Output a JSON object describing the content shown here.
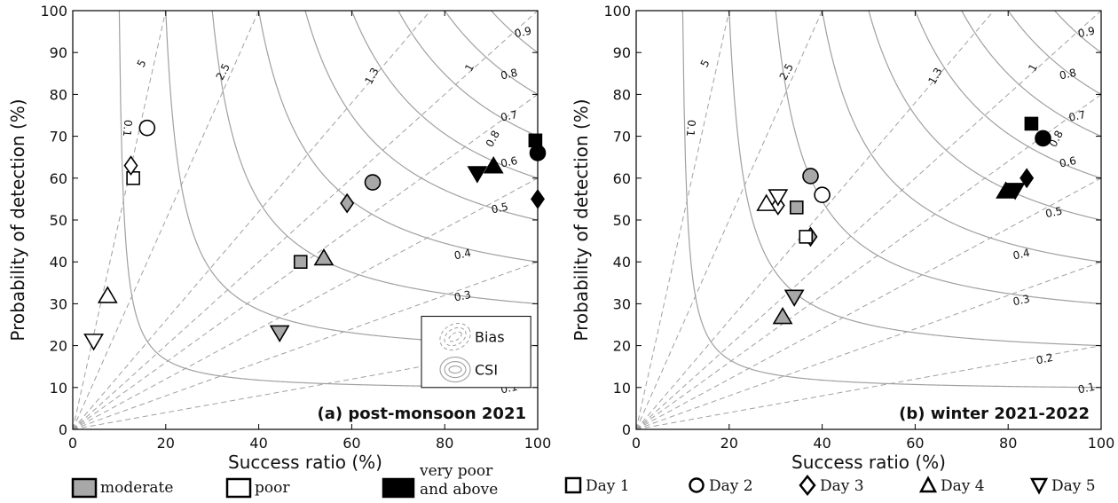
{
  "chart_data": [
    {
      "type": "scatter",
      "panel_label": "(a)  post-monsoon 2021",
      "xlabel": "Success ratio (%)",
      "ylabel": "Probability of detection (%)",
      "xlim": [
        0,
        100
      ],
      "ylim": [
        0,
        100
      ],
      "xticks": [
        "0",
        "20",
        "40",
        "60",
        "80",
        "100"
      ],
      "yticks": [
        "0",
        "10",
        "20",
        "30",
        "40",
        "50",
        "60",
        "70",
        "80",
        "90",
        "100"
      ],
      "bias_labels": [
        "5",
        "2.5",
        "1.3",
        "1",
        "0.8"
      ],
      "csi_labels": [
        "0.1",
        "0.3",
        "0.4",
        "0.5",
        "0.6",
        "0.7",
        "0.8",
        "0.9"
      ],
      "inset_legend": [
        "Bias",
        "CSI"
      ],
      "points": [
        {
          "category": "moderate",
          "day": "Day 1",
          "x": 49,
          "y": 40
        },
        {
          "category": "moderate",
          "day": "Day 2",
          "x": 64.5,
          "y": 59
        },
        {
          "category": "moderate",
          "day": "Day 3",
          "x": 59,
          "y": 54
        },
        {
          "category": "moderate",
          "day": "Day 4",
          "x": 54,
          "y": 41
        },
        {
          "category": "moderate",
          "day": "Day 5",
          "x": 44.5,
          "y": 23
        },
        {
          "category": "poor",
          "day": "Day 1",
          "x": 13,
          "y": 60
        },
        {
          "category": "poor",
          "day": "Day 2",
          "x": 16,
          "y": 72
        },
        {
          "category": "poor",
          "day": "Day 3",
          "x": 12.5,
          "y": 63
        },
        {
          "category": "poor",
          "day": "Day 4",
          "x": 7.5,
          "y": 32
        },
        {
          "category": "poor",
          "day": "Day 5",
          "x": 4.5,
          "y": 21
        },
        {
          "category": "very poor and above",
          "day": "Day 1",
          "x": 99.5,
          "y": 69
        },
        {
          "category": "very poor and above",
          "day": "Day 2",
          "x": 100,
          "y": 66
        },
        {
          "category": "very poor and above",
          "day": "Day 3",
          "x": 100,
          "y": 55
        },
        {
          "category": "very poor and above",
          "day": "Day 4",
          "x": 90.5,
          "y": 63
        },
        {
          "category": "very poor and above",
          "day": "Day 5",
          "x": 87,
          "y": 61
        }
      ]
    },
    {
      "type": "scatter",
      "panel_label": "(b)  winter 2021-2022",
      "xlabel": "Success ratio (%)",
      "ylabel": "Probability of detection (%)",
      "xlim": [
        0,
        100
      ],
      "ylim": [
        0,
        100
      ],
      "xticks": [
        "0",
        "20",
        "40",
        "60",
        "80",
        "100"
      ],
      "yticks": [
        "0",
        "10",
        "20",
        "30",
        "40",
        "50",
        "60",
        "70",
        "80",
        "90",
        "100"
      ],
      "bias_labels": [
        "5",
        "2.5",
        "1.3",
        "1",
        "0.8"
      ],
      "csi_labels": [
        "0.1",
        "0.2",
        "0.3",
        "0.4",
        "0.5",
        "0.6",
        "0.7",
        "0.8",
        "0.9"
      ],
      "points": [
        {
          "category": "moderate",
          "day": "Day 1",
          "x": 34.5,
          "y": 53
        },
        {
          "category": "moderate",
          "day": "Day 2",
          "x": 37.5,
          "y": 60.5
        },
        {
          "category": "moderate",
          "day": "Day 3",
          "x": 37.5,
          "y": 46
        },
        {
          "category": "moderate",
          "day": "Day 4",
          "x": 31.5,
          "y": 27
        },
        {
          "category": "moderate",
          "day": "Day 5",
          "x": 34,
          "y": 31.5
        },
        {
          "category": "poor",
          "day": "Day 1",
          "x": 36.5,
          "y": 46
        },
        {
          "category": "poor",
          "day": "Day 2",
          "x": 40,
          "y": 56
        },
        {
          "category": "poor",
          "day": "Day 3",
          "x": 30.5,
          "y": 53.5
        },
        {
          "category": "poor",
          "day": "Day 4",
          "x": 28,
          "y": 54
        },
        {
          "category": "poor",
          "day": "Day 5",
          "x": 30.5,
          "y": 55.5
        },
        {
          "category": "very poor and above",
          "day": "Day 1",
          "x": 85,
          "y": 73
        },
        {
          "category": "very poor and above",
          "day": "Day 2",
          "x": 87.5,
          "y": 69.5
        },
        {
          "category": "very poor and above",
          "day": "Day 3",
          "x": 84,
          "y": 60
        },
        {
          "category": "very poor and above",
          "day": "Day 4",
          "x": 79.5,
          "y": 57
        },
        {
          "category": "very poor and above",
          "day": "Day 5",
          "x": 81.5,
          "y": 57
        }
      ]
    }
  ],
  "legend": {
    "categories": [
      {
        "key": "moderate",
        "label": "moderate",
        "fill": "#a8a8a8"
      },
      {
        "key": "poor",
        "label": "poor",
        "fill": "#ffffff"
      },
      {
        "key": "very poor and above",
        "label_line1": "very poor",
        "label_line2": "and above",
        "fill": "#000000"
      }
    ],
    "days": [
      {
        "key": "Day 1",
        "label": "Day 1",
        "marker": "square"
      },
      {
        "key": "Day 2",
        "label": "Day 2",
        "marker": "circle"
      },
      {
        "key": "Day 3",
        "label": "Day 3",
        "marker": "diamond"
      },
      {
        "key": "Day 4",
        "label": "Day 4",
        "marker": "triangle-up"
      },
      {
        "key": "Day 5",
        "label": "Day 5",
        "marker": "triangle-down"
      }
    ]
  },
  "colors": {
    "contour": "#a0a0a0",
    "axis": "#000000",
    "moderate": "#a8a8a8",
    "poor": "#ffffff",
    "severe": "#000000"
  }
}
